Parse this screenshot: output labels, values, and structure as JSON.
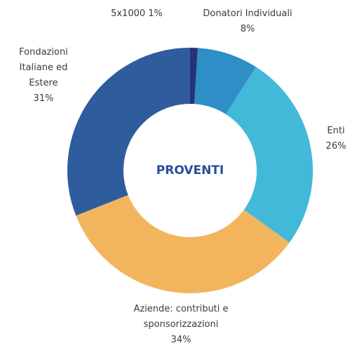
{
  "chart_data": {
    "type": "donut",
    "title": "PROVENTI",
    "categories": [
      "5x1000",
      "Donatori Individuali",
      "Enti",
      "Aziende: contributi e sponsorizzazioni",
      "Fondazioni Italiane ed Estere"
    ],
    "values": [
      1,
      8,
      26,
      34,
      31
    ],
    "value_labels": [
      "1%",
      "8%",
      "26%",
      "34%",
      "31%"
    ],
    "colors": [
      "#26327a",
      "#2e8ec6",
      "#43b9da",
      "#f2b55e",
      "#2e5c9d"
    ]
  }
}
